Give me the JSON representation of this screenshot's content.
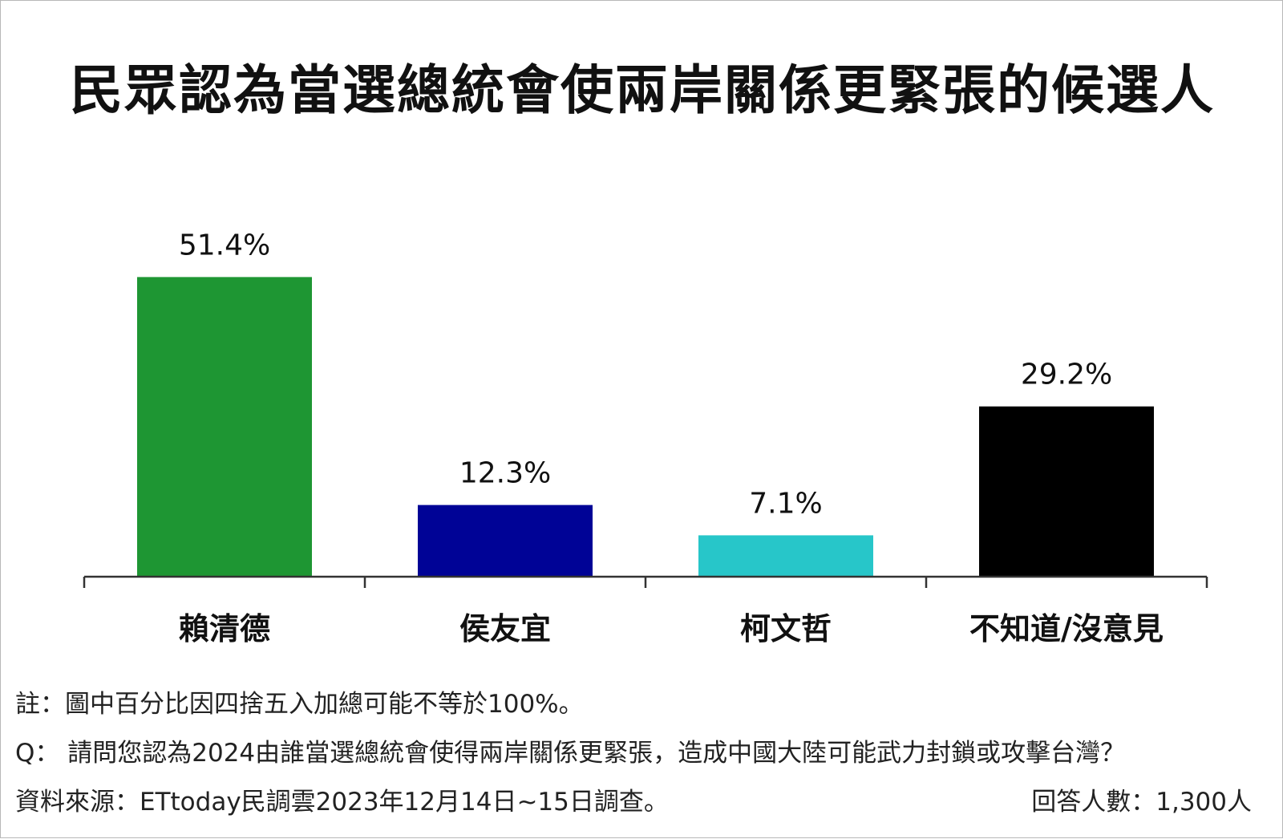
{
  "chart_data": {
    "type": "bar",
    "title": "民眾認為當選總統會使兩岸關係更緊張的候選人",
    "categories": [
      "賴清德",
      "侯友宜",
      "柯文哲",
      "不知道/沒意見"
    ],
    "values": [
      51.4,
      12.3,
      7.1,
      29.2
    ],
    "value_labels": [
      "51.4%",
      "12.3%",
      "7.1%",
      "29.2%"
    ],
    "colors": [
      "#1e9633",
      "#000396",
      "#27c6c9",
      "#000000"
    ],
    "ylim": [
      0,
      52
    ],
    "grid": false,
    "legend": "none"
  },
  "footer": {
    "note": "註：圖中百分比因四捨五入加總可能不等於100%。",
    "question": "Q： 請問您認為2024由誰當選總統會使得兩岸關係更緊張，造成中國大陸可能武力封鎖或攻擊台灣？",
    "source": "資料來源：ETtoday民調雲2023年12月14日~15日調查。",
    "respondents": "回答人數：1,300人"
  }
}
